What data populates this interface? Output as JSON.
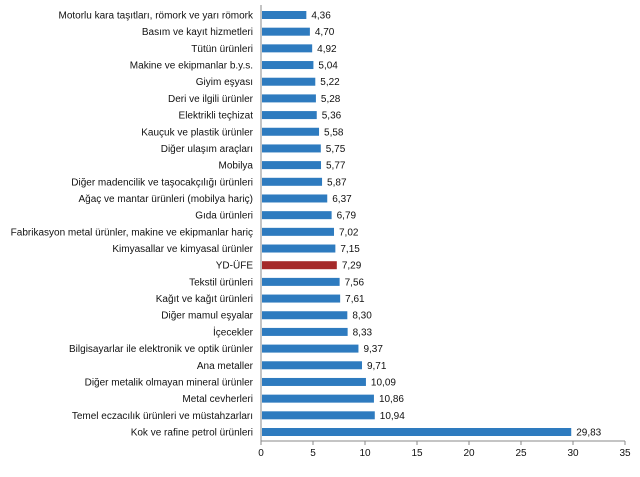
{
  "chart_data": {
    "type": "bar",
    "orientation": "horizontal",
    "categories": [
      "Motorlu kara taşıtları, römork ve yarı römork",
      "Basım ve kayıt hizmetleri",
      "Tütün ürünleri",
      "Makine ve ekipmanlar b.y.s.",
      "Giyim eşyası",
      "Deri ve ilgili ürünler",
      "Elektrikli teçhizat",
      "Kauçuk ve plastik ürünler",
      "Diğer ulaşım araçları",
      "Mobilya",
      "Diğer madencilik ve taşocakçılığı ürünleri",
      "Ağaç ve mantar ürünleri (mobilya hariç)",
      "Gıda ürünleri",
      "Fabrikasyon metal ürünler, makine ve ekipmanlar hariç",
      "Kimyasallar ve kimyasal ürünler",
      "YD-ÜFE",
      "Tekstil ürünleri",
      "Kağıt ve kağıt ürünleri",
      "Diğer mamul eşyalar",
      "İçecekler",
      "Bilgisayarlar ile elektronik ve optik ürünler",
      "Ana metaller",
      "Diğer metalik olmayan mineral ürünler",
      "Metal cevherleri",
      "Temel eczacılık ürünleri ve müstahzarları",
      "Kok ve rafine petrol ürünleri"
    ],
    "values": [
      4.36,
      4.7,
      4.92,
      5.04,
      5.22,
      5.28,
      5.36,
      5.58,
      5.75,
      5.77,
      5.87,
      6.37,
      6.79,
      7.02,
      7.15,
      7.29,
      7.56,
      7.61,
      8.3,
      8.33,
      9.37,
      9.71,
      10.09,
      10.86,
      10.94,
      29.83
    ],
    "value_labels": [
      "4,36",
      "4,70",
      "4,92",
      "5,04",
      "5,22",
      "5,28",
      "5,36",
      "5,58",
      "5,75",
      "5,77",
      "5,87",
      "6,37",
      "6,79",
      "7,02",
      "7,15",
      "7,29",
      "7,56",
      "7,61",
      "8,30",
      "8,33",
      "9,37",
      "9,71",
      "10,09",
      "10,86",
      "10,94",
      "29,83"
    ],
    "highlight_category": "YD-ÜFE",
    "xlim": [
      0,
      35
    ],
    "xticks": [
      "0",
      "5",
      "10",
      "15",
      "20",
      "25",
      "30",
      "35"
    ],
    "xtick_values": [
      0,
      5,
      10,
      15,
      20,
      25,
      30,
      35
    ],
    "grid": false,
    "colors": {
      "bar": "#2e7bbf",
      "highlight": "#a52a2a",
      "axis": "#888888"
    }
  }
}
